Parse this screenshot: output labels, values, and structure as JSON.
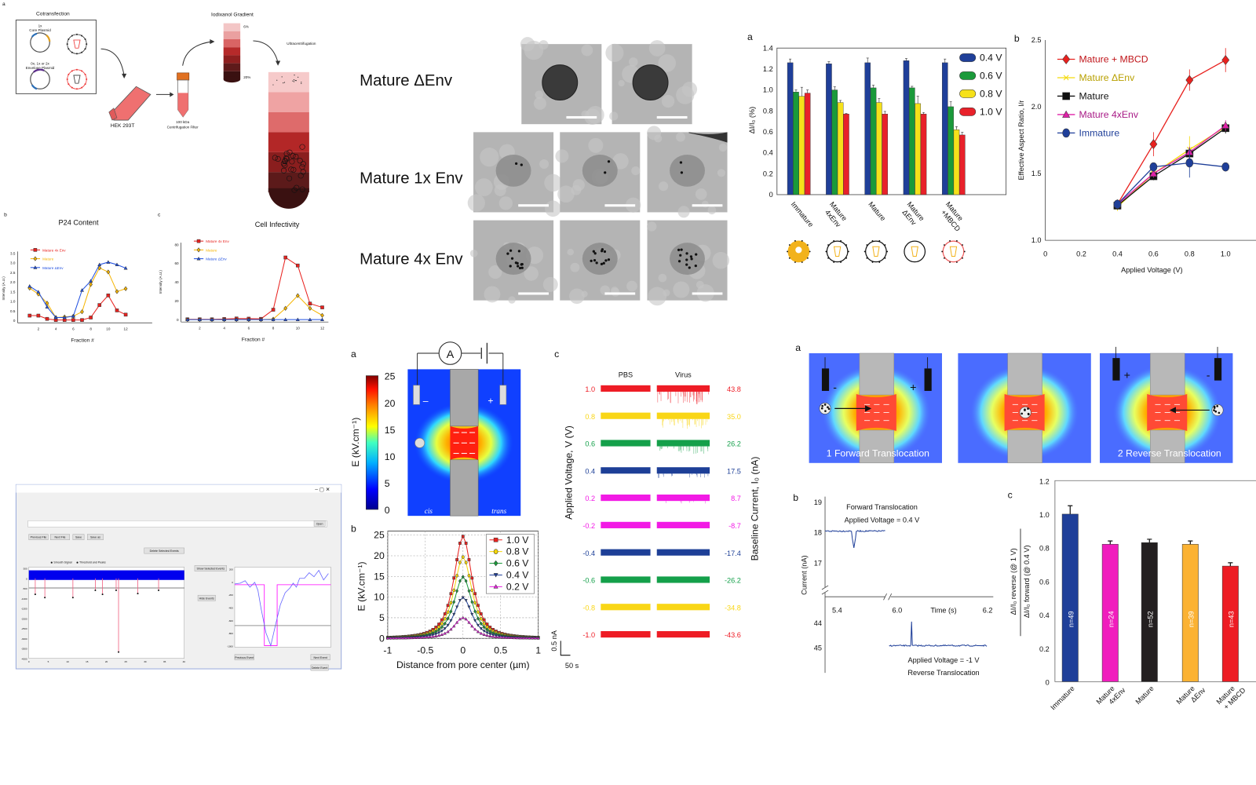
{
  "schematic": {
    "label": "a",
    "cotransfection": "Cotransfection",
    "core_plasmid": [
      "1x",
      "Core Plasmid"
    ],
    "envelope_plasmid": [
      "0x, 1x or 2x",
      "Envelope Plasmid"
    ],
    "cell_line": "HEK 293T",
    "filter": [
      "100 kDa",
      "Centrifugation Filter"
    ],
    "gradient": "Iodixanol Gradient",
    "gradient_top": "6%",
    "gradient_bottom": "20%",
    "ultracentrifugation": "Ultracentrifugation",
    "gradient_colors": [
      "#f3c6c6",
      "#eaa0a0",
      "#d96464",
      "#b62a2a",
      "#8e1f1f",
      "#5e1a1a",
      "#3a1111"
    ]
  },
  "tem": {
    "rows": [
      "Mature ΔEnv",
      "Mature 1x Env",
      "Mature 4x Env"
    ]
  },
  "gui": {
    "buttons": [
      "Open",
      "Previous File",
      "Next File",
      "Save",
      "Save as",
      "Delete Selected Events",
      "Show Selected Events",
      "Hide Events",
      "Previous Event",
      "Next Event",
      "Delete Event"
    ],
    "radio_options": [
      "Smooth Signal",
      "Threshold and Peaks"
    ],
    "main_plot_yticks": [
      "500",
      "0",
      "-500",
      "-1000",
      "-1500",
      "-2000",
      "-2500",
      "-3000",
      "-3500",
      "-4000"
    ],
    "main_plot_xticks": [
      "0",
      "5",
      "10",
      "15",
      "20",
      "25",
      "30",
      "35",
      "40"
    ],
    "event_plot_yticks": [
      "200",
      "0",
      "-200",
      "-400",
      "-600",
      "-800",
      "-1000"
    ]
  },
  "heatmap": {
    "label": "a",
    "colorbar_label": "E (kV.cm⁻¹)",
    "colorbar_ticks": [
      "25",
      "20",
      "15",
      "10",
      "5",
      "0"
    ],
    "ammeter": "A",
    "minus": "–",
    "plus": "+",
    "cis": "cis",
    "trans": "trans"
  },
  "translocation": {
    "label": "a",
    "captions": [
      "1 Forward Translocation",
      "2 Reverse Translocation"
    ],
    "minus": "-",
    "plus": "+"
  },
  "chart_data": [
    {
      "type": "line",
      "panel": "b",
      "title": "P24 Content",
      "xlabel": "Fraction #",
      "ylabel": "Intensity (A.U.)",
      "x": [
        1,
        2,
        3,
        4,
        5,
        6,
        7,
        8,
        9,
        10,
        11,
        12
      ],
      "xticks": [
        2,
        4,
        6,
        8,
        10,
        12
      ],
      "yticks": [
        "0",
        "0.5",
        "1.0",
        "1.5",
        "2.0",
        "2.5",
        "3.0",
        "3.5"
      ],
      "ylim": [
        0,
        3.5
      ],
      "legend": "top-left",
      "series": [
        {
          "name": "Mature 4x Env",
          "color": "#e8211e",
          "marker": "square",
          "values": [
            0.25,
            0.25,
            0.08,
            0.02,
            0.02,
            0.02,
            0.02,
            0.15,
            0.8,
            1.3,
            0.52,
            0.3
          ]
        },
        {
          "name": "Mature",
          "color": "#f5b400",
          "marker": "diamond",
          "values": [
            1.68,
            1.37,
            0.9,
            0.15,
            0.18,
            0.22,
            0.45,
            1.87,
            2.73,
            2.52,
            1.5,
            1.65
          ]
        },
        {
          "name": "Mature ΔEnv",
          "color": "#1f4fe0",
          "marker": "triangle",
          "values": [
            1.78,
            1.48,
            0.7,
            0.15,
            0.15,
            0.22,
            1.57,
            2.05,
            2.9,
            3.03,
            2.9,
            2.72
          ]
        }
      ]
    },
    {
      "type": "line",
      "panel": "c",
      "title": "Cell Infectivity",
      "xlabel": "Fraction #",
      "ylabel": "Intensity (A.U.)",
      "x": [
        1,
        2,
        3,
        4,
        5,
        6,
        7,
        8,
        9,
        10,
        11,
        12
      ],
      "xticks": [
        2,
        4,
        6,
        8,
        10,
        12
      ],
      "yticks": [
        "0",
        "20",
        "40",
        "60",
        "80"
      ],
      "ylim": [
        0,
        80
      ],
      "legend": "top-left",
      "series": [
        {
          "name": "Mature 4x Env",
          "color": "#e8211e",
          "marker": "square",
          "values": [
            0.3,
            0.3,
            0.3,
            0.6,
            1.2,
            1,
            0.8,
            10.5,
            66,
            57.5,
            17,
            13
          ]
        },
        {
          "name": "Mature",
          "color": "#f5b400",
          "marker": "diamond",
          "values": [
            0,
            0,
            0,
            0,
            0,
            0,
            0,
            0.5,
            12,
            25.5,
            12,
            4.5
          ]
        },
        {
          "name": "Mature ΔEnv",
          "color": "#1f4fe0",
          "marker": "triangle",
          "values": [
            0,
            0,
            0,
            0,
            0,
            0,
            0,
            0,
            0,
            0,
            0,
            0
          ]
        }
      ]
    },
    {
      "type": "bar",
      "panel": "a",
      "ylabel": "ΔI/I₀ (%)",
      "categories": [
        [
          "Immature"
        ],
        [
          "Mature",
          "4xEnv"
        ],
        [
          "Mature"
        ],
        [
          "Mature",
          "ΔEnv"
        ],
        [
          "Mature",
          "+MBCD"
        ]
      ],
      "yticks": [
        "0",
        "0.2",
        "0.4",
        "0.6",
        "0.8",
        "1.0",
        "1.2",
        "1.4"
      ],
      "ylim": [
        0,
        1.4
      ],
      "legend": "top-right",
      "series": [
        {
          "name": "0.4 V",
          "color": "#1f3f99",
          "values": [
            1.26,
            1.25,
            1.26,
            1.28,
            1.26
          ],
          "errors": [
            0.035,
            0.02,
            0.045,
            0.02,
            0.035
          ]
        },
        {
          "name": "0.6 V",
          "color": "#1a9a3a",
          "values": [
            0.98,
            1.0,
            1.02,
            1.02,
            0.84
          ],
          "errors": [
            0.02,
            0.03,
            0.025,
            0.015,
            0.05
          ]
        },
        {
          "name": "0.8 V",
          "color": "#f6e11a",
          "values": [
            0.94,
            0.88,
            0.88,
            0.87,
            0.62
          ],
          "errors": [
            0.085,
            0.02,
            0.04,
            0.07,
            0.03
          ]
        },
        {
          "name": "1.0 V",
          "color": "#e8212a",
          "values": [
            0.97,
            0.77,
            0.77,
            0.77,
            0.57
          ],
          "errors": [
            0.03,
            0.005,
            0.025,
            0.015,
            0.025
          ]
        }
      ],
      "icon_colors": [
        "#f2b21b",
        "#111111",
        "#111111",
        "#111111",
        "#ef5a5a"
      ]
    },
    {
      "type": "line",
      "panel": "b",
      "xlabel": "Applied Voltage (V)",
      "ylabel": "Effective Aspect Ratio, l/r",
      "x": [
        0.4,
        0.6,
        0.8,
        1.0
      ],
      "xticks": [
        "0",
        "0.2",
        "0.4",
        "0.6",
        "0.8",
        "1.0"
      ],
      "yticks": [
        "1.0",
        "1.5",
        "2.0",
        "2.5"
      ],
      "xlim": [
        0,
        1.2
      ],
      "ylim": [
        1.0,
        2.5
      ],
      "legend": "top-left",
      "series": [
        {
          "name": "Mature + MBCD",
          "color": "#e8211e",
          "marker": "diamond",
          "values": [
            1.27,
            1.72,
            2.2,
            2.35
          ],
          "errors": [
            0.03,
            0.09,
            0.08,
            0.09
          ]
        },
        {
          "name": "Mature ΔEnv",
          "color": "#f4d90a",
          "marker": "x",
          "values": [
            1.25,
            1.5,
            1.68,
            1.85
          ],
          "errors": [
            0.03,
            0.03,
            0.1,
            0.04
          ]
        },
        {
          "name": "Mature",
          "color": "#111111",
          "marker": "square",
          "values": [
            1.26,
            1.48,
            1.65,
            1.84
          ],
          "errors": [
            0.03,
            0.03,
            0.05,
            0.04
          ]
        },
        {
          "name": "Mature 4xEnv",
          "color": "#e020a8",
          "marker": "triangle",
          "values": [
            1.27,
            1.5,
            1.66,
            1.86
          ],
          "errors": [
            0.03,
            0.03,
            0.04,
            0.04
          ]
        },
        {
          "name": "Immature",
          "color": "#1f3f99",
          "marker": "circle",
          "values": [
            1.27,
            1.55,
            1.58,
            1.55
          ],
          "errors": [
            0.03,
            0.03,
            0.11,
            0.02
          ]
        }
      ]
    },
    {
      "type": "line",
      "panel": "b",
      "xlabel": "Distance from pore center (µm)",
      "ylabel": "E (kV.cm⁻¹)",
      "xticks": [
        "-1",
        "-0.5",
        "0",
        "0.5",
        "1"
      ],
      "yticks": [
        "0",
        "5",
        "10",
        "15",
        "20",
        "25"
      ],
      "xlim": [
        -1,
        1
      ],
      "ylim": [
        0,
        25
      ],
      "grid": true,
      "legend": "top-right",
      "series": [
        {
          "name": "1.0 V",
          "color": "#e8211e",
          "marker": "square",
          "peak": 24.7
        },
        {
          "name": "0.8 V",
          "color": "#f4d60a",
          "marker": "circle",
          "peak": 19.7
        },
        {
          "name": "0.6 V",
          "color": "#1a9a3a",
          "marker": "diamond",
          "peak": 14.9
        },
        {
          "name": "0.4 V",
          "color": "#1f3f99",
          "marker": "triangle-down",
          "peak": 9.9
        },
        {
          "name": "0.2 V",
          "color": "#e81fe0",
          "marker": "triangle",
          "peak": 5.0
        }
      ]
    },
    {
      "type": "table",
      "panel": "c",
      "columns": [
        "PBS",
        "Virus"
      ],
      "ylabel": "Applied Voltage, V (V)",
      "y2label": "Baseline Current, I₀ (nA)",
      "scalebar": [
        "0.5 nA",
        "50 s"
      ],
      "rows": [
        {
          "voltage": "1.0",
          "current": "43.8",
          "color": "#ee1c25"
        },
        {
          "voltage": "0.8",
          "current": "35.0",
          "color": "#f9d616"
        },
        {
          "voltage": "0.6",
          "current": "26.2",
          "color": "#14a04a"
        },
        {
          "voltage": "0.4",
          "current": "17.5",
          "color": "#1d3f97"
        },
        {
          "voltage": "0.2",
          "current": "8.7",
          "color": "#f21ae5"
        },
        {
          "voltage": "-0.2",
          "current": "-8.7",
          "color": "#f21ae5"
        },
        {
          "voltage": "-0.4",
          "current": "-17.4",
          "color": "#1d3f97"
        },
        {
          "voltage": "-0.6",
          "current": "-26.2",
          "color": "#14a04a"
        },
        {
          "voltage": "-0.8",
          "current": "-34.8",
          "color": "#f9d616"
        },
        {
          "voltage": "-1.0",
          "current": "-43.6",
          "color": "#ee1c25"
        }
      ]
    },
    {
      "type": "line",
      "panel": "b",
      "ylabel": "Current (nA)",
      "xlabel": "Time (s)",
      "xticks": [
        "5.4",
        "6.0",
        "6.2"
      ],
      "yticks_top": [
        "19",
        "18",
        "17"
      ],
      "yticks_bottom": [
        "44",
        "45"
      ],
      "annotations": [
        "Forward Translocation",
        "Applied Voltage = 0.4 V",
        "Applied Voltage = -1 V",
        "Reverse Translocation"
      ],
      "color": "#1f3f99",
      "forward_baseline": 18.0,
      "forward_peak": 17.45,
      "reverse_baseline": 45.0,
      "reverse_peak": 44.0
    },
    {
      "type": "bar",
      "panel": "c",
      "ylabel": [
        "ΔI/I₀ reverse (@ 1 V)",
        "ΔI/I₀ forward (@ 0.4 V)"
      ],
      "categories": [
        [
          "Immature"
        ],
        [
          "Mature",
          "4xEnv"
        ],
        [
          "Mature"
        ],
        [
          "Mature",
          "ΔEnv"
        ],
        [
          "Mature",
          "+ MBCD"
        ]
      ],
      "values": [
        1.0,
        0.82,
        0.83,
        0.82,
        0.69
      ],
      "errors": [
        0.05,
        0.02,
        0.02,
        0.02,
        0.02
      ],
      "n_labels": [
        "n=49",
        "n=24",
        "n=52",
        "n=39",
        "n=43"
      ],
      "colors": [
        "#1f3f99",
        "#f01dbd",
        "#231f20",
        "#fbb233",
        "#ed1c24"
      ],
      "yticks": [
        "0",
        "0.2",
        "0.4",
        "0.6",
        "0.8",
        "1.0",
        "1.2"
      ],
      "ylim": [
        0,
        1.2
      ]
    }
  ]
}
